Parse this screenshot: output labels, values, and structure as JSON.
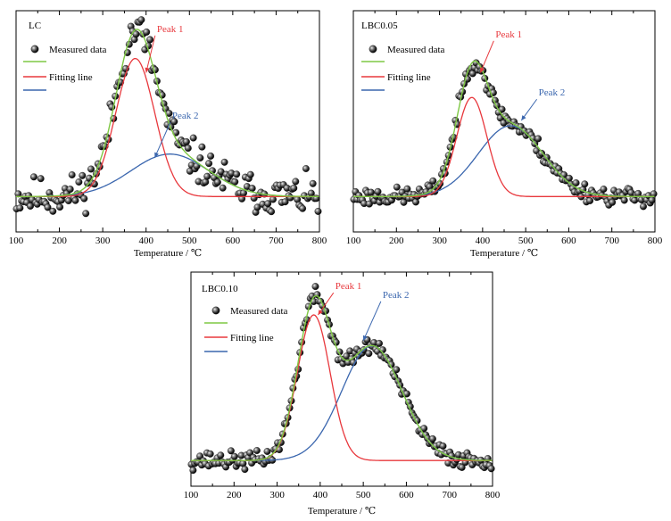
{
  "chart_data": [
    {
      "type": "scatter",
      "panel_label": "LC",
      "xlabel": "Temperature / ℃",
      "ylabel": "",
      "xlim": [
        100,
        800
      ],
      "ylim": [
        -0.2,
        1.05
      ],
      "xticks": [
        "100",
        "200",
        "300",
        "400",
        "500",
        "600",
        "700",
        "800"
      ],
      "legend": {
        "placement": "top-left",
        "entries": [
          "Measured data",
          "",
          "Fitting line",
          ""
        ]
      },
      "annotations": [
        {
          "text": "Peak 1",
          "color": "#e8383d",
          "x": 425,
          "y": 0.93,
          "arrow_to": [
            400,
            0.7
          ]
        },
        {
          "text": "Peak 2",
          "color": "#3a66ae",
          "x": 460,
          "y": 0.44,
          "arrow_to": [
            420,
            0.22
          ]
        }
      ],
      "series": [
        {
          "role": "peak1",
          "color": "#e8383d",
          "baseline": 0,
          "amplitude": 0.78,
          "center": 375,
          "width": 45
        },
        {
          "role": "peak2",
          "color": "#3a66ae",
          "baseline": 0,
          "amplitude": 0.24,
          "center": 455,
          "width": 90
        },
        {
          "role": "fit",
          "color": "#7ec843"
        }
      ],
      "measured_data": {
        "noise": 0.11,
        "step": 4,
        "seed": 11
      },
      "colors": {
        "measured": "#111111",
        "fit": "#7ec843",
        "peak1": "#e8383d",
        "peak2": "#3a66ae"
      }
    },
    {
      "type": "scatter",
      "panel_label": "LBC0.05",
      "xlabel": "Temperature / ℃",
      "ylabel": "",
      "xlim": [
        100,
        800
      ],
      "ylim": [
        -0.2,
        1.05
      ],
      "xticks": [
        "100",
        "200",
        "300",
        "400",
        "500",
        "600",
        "700",
        "800"
      ],
      "legend": {
        "placement": "top-left",
        "entries": [
          "Measured data",
          "",
          "Fitting line",
          ""
        ]
      },
      "annotations": [
        {
          "text": "Peak 1",
          "color": "#e8383d",
          "x": 430,
          "y": 0.9,
          "arrow_to": [
            395,
            0.7
          ]
        },
        {
          "text": "Peak 2",
          "color": "#3a66ae",
          "x": 530,
          "y": 0.57,
          "arrow_to": [
            490,
            0.43
          ]
        }
      ],
      "series": [
        {
          "role": "peak1",
          "color": "#e8383d",
          "baseline": 0,
          "amplitude": 0.56,
          "center": 375,
          "width": 35
        },
        {
          "role": "peak2",
          "color": "#3a66ae",
          "baseline": 0,
          "amplitude": 0.4,
          "center": 465,
          "width": 75
        },
        {
          "role": "fit",
          "color": "#7ec843"
        }
      ],
      "measured_data": {
        "noise": 0.05,
        "step": 4,
        "seed": 23
      },
      "colors": {
        "measured": "#111111",
        "fit": "#7ec843",
        "peak1": "#e8383d",
        "peak2": "#3a66ae"
      }
    },
    {
      "type": "scatter",
      "panel_label": "LBC0.10",
      "xlabel": "Temperature / ℃",
      "ylabel": "",
      "xlim": [
        100,
        800
      ],
      "ylim": [
        -0.15,
        1.1
      ],
      "xticks": [
        "100",
        "200",
        "300",
        "400",
        "500",
        "600",
        "700",
        "800"
      ],
      "legend": {
        "placement": "top-left",
        "entries": [
          "Measured data",
          "",
          "Fitting line",
          ""
        ]
      },
      "annotations": [
        {
          "text": "Peak 1",
          "color": "#e8383d",
          "x": 435,
          "y": 1.0,
          "arrow_to": [
            395,
            0.85
          ]
        },
        {
          "text": "Peak 2",
          "color": "#3a66ae",
          "x": 545,
          "y": 0.95,
          "arrow_to": [
            500,
            0.7
          ]
        }
      ],
      "series": [
        {
          "role": "peak1",
          "color": "#e8383d",
          "baseline": 0,
          "amplitude": 0.85,
          "center": 385,
          "width": 38
        },
        {
          "role": "peak2",
          "color": "#3a66ae",
          "baseline": 0,
          "amplitude": 0.67,
          "center": 520,
          "width": 70
        },
        {
          "role": "fit",
          "color": "#7ec843"
        }
      ],
      "measured_data": {
        "noise": 0.05,
        "step": 4,
        "seed": 37
      },
      "colors": {
        "measured": "#111111",
        "fit": "#7ec843",
        "peak1": "#e8383d",
        "peak2": "#3a66ae"
      }
    }
  ]
}
